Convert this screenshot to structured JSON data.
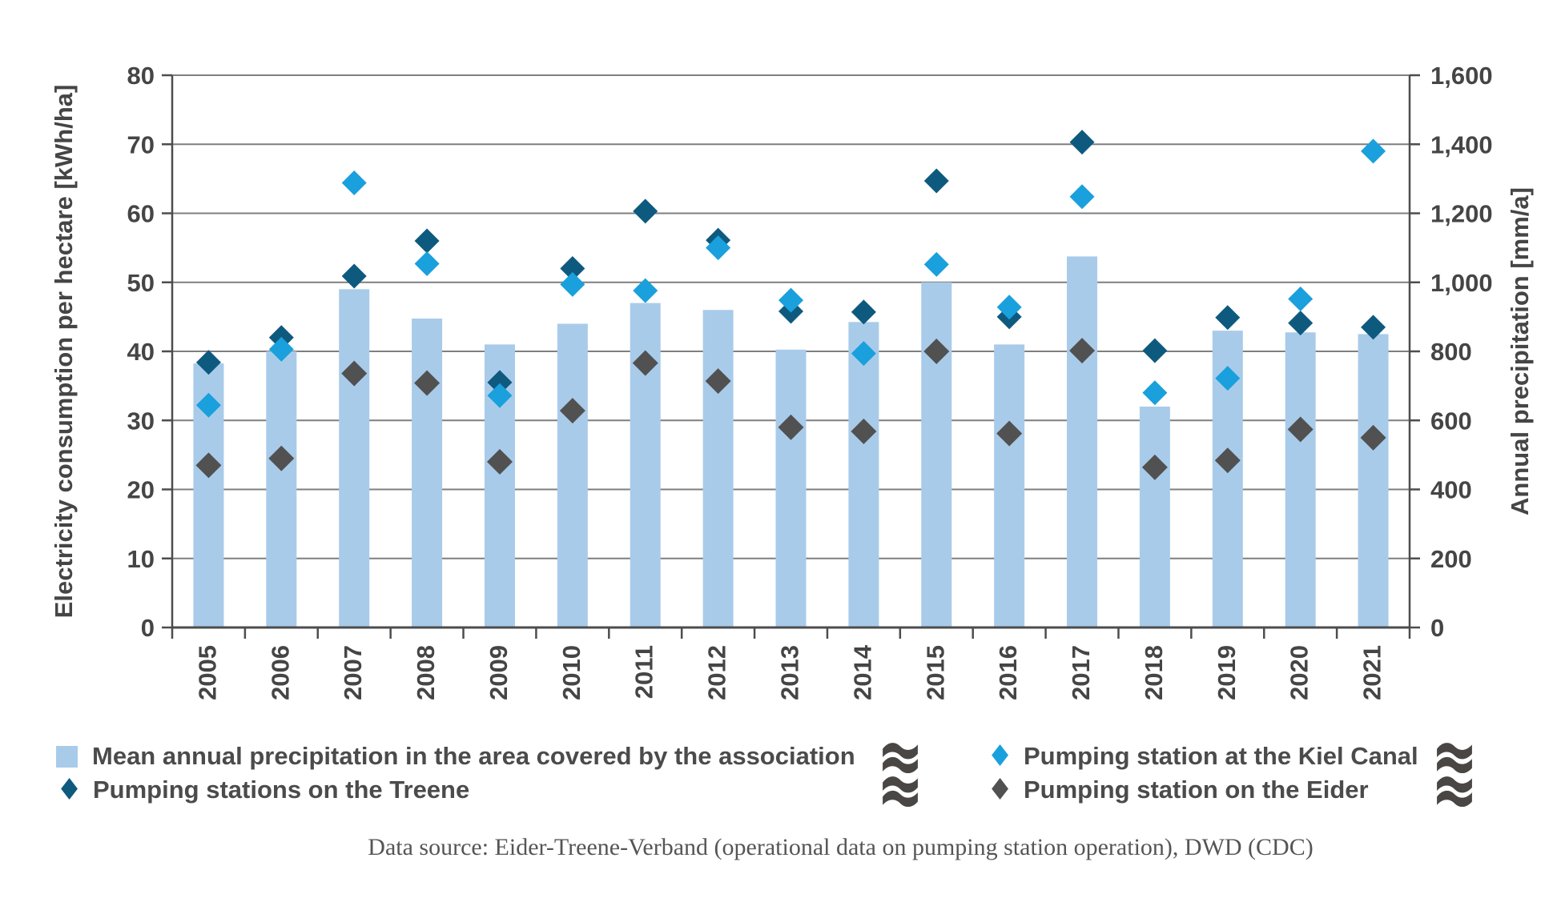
{
  "colors": {
    "precipitation_bar": "#a9cbea",
    "treene": "#0e5a7f",
    "kiel_canal": "#1aa0dc",
    "eider": "#515151",
    "gridline": "#7f7f7f",
    "axis_line": "#4d4d4d",
    "axis_text": "#454545",
    "legend_text": "#4b4b4b",
    "wave_icon": "#4a4643",
    "footer_text": "#555555"
  },
  "chart_data": {
    "type": "bar",
    "subtype": "combo-bar-scatter",
    "categories": [
      "2005",
      "2006",
      "2007",
      "2008",
      "2009",
      "2010",
      "2011",
      "2012",
      "2013",
      "2014",
      "2015",
      "2016",
      "2017",
      "2018",
      "2019",
      "2020",
      "2021"
    ],
    "left_axis": {
      "title": "Electricity consumption per hectare [kWh/ha]",
      "max": 80,
      "ticks": [
        0,
        10,
        20,
        30,
        40,
        50,
        60,
        70,
        80
      ]
    },
    "right_axis": {
      "title": "Annual precipitation [mm/a]",
      "max": 1600,
      "tick_labels": [
        "0",
        "200",
        "400",
        "600",
        "800",
        "1,000",
        "1,200",
        "1,400",
        "1,600"
      ]
    },
    "grid": true,
    "legend_position": "bottom",
    "series": [
      {
        "name": "Mean annual precipitation in the area covered by the association",
        "type": "bar",
        "axis": "right",
        "color": "#a9cbea",
        "values": [
          765,
          800,
          980,
          895,
          820,
          880,
          940,
          920,
          805,
          885,
          1000,
          820,
          1075,
          640,
          860,
          855,
          850
        ]
      },
      {
        "name": "Pumping stations on the Treene",
        "type": "scatter",
        "axis": "left",
        "color": "#0e5a7f",
        "marker_size": 15.5,
        "values": [
          38.4,
          42.0,
          50.9,
          56.0,
          35.5,
          52.0,
          60.3,
          56.1,
          45.8,
          45.7,
          64.7,
          45.0,
          70.3,
          40.1,
          44.9,
          44.1,
          43.5
        ]
      },
      {
        "name": "Pumping station at the Kiel Canal",
        "type": "scatter",
        "axis": "left",
        "color": "#1aa0dc",
        "marker_size": 15.5,
        "values": [
          32.2,
          40.3,
          64.4,
          52.7,
          33.6,
          49.7,
          48.8,
          55.0,
          47.4,
          39.7,
          52.6,
          46.4,
          62.4,
          34.0,
          36.1,
          47.6,
          69.0
        ]
      },
      {
        "name": "Pumping station on the Eider",
        "type": "scatter",
        "axis": "left",
        "color": "#515151",
        "marker_size": 16,
        "values": [
          23.5,
          24.5,
          36.8,
          35.4,
          24.0,
          31.4,
          38.3,
          35.7,
          29.0,
          28.4,
          40.0,
          28.1,
          40.1,
          23.2,
          24.2,
          28.7,
          27.5
        ]
      }
    ]
  },
  "legend": {
    "items": [
      {
        "label": "Mean annual precipitation in the area covered by the association",
        "marker": "square"
      },
      {
        "label": "Pumping stations on the Treene",
        "marker": "diamond"
      },
      {
        "label": "Pumping station at the Kiel Canal",
        "marker": "diamond"
      },
      {
        "label": "Pumping station on the Eider",
        "marker": "diamond"
      }
    ],
    "diamond_glyph": "♦"
  },
  "footer": {
    "text": "Data source: Eider-Treene-Verband (operational data on pumping station operation), DWD (CDC)"
  }
}
